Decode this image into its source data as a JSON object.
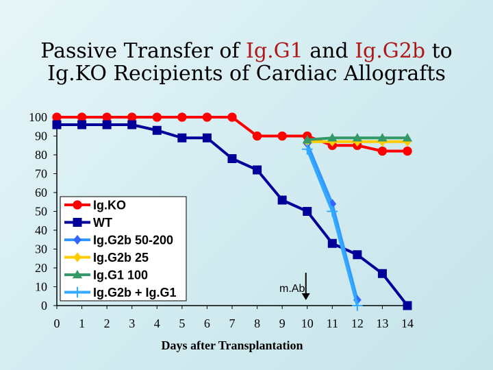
{
  "title": {
    "line1": {
      "p1": "Passive Transfer of ",
      "p2": "Ig.G1",
      "p3": " and ",
      "p4": "Ig.G2b",
      "p5": " to"
    },
    "line2": "Ig.KO Recipients of Cardiac Allografts"
  },
  "colors": {
    "highlight": "#b01818"
  },
  "chart_data": {
    "type": "line",
    "title": "Passive Transfer of Ig.G1 and Ig.G2b to Ig.KO Recipients of Cardiac Allografts",
    "xlabel": "Days after Transplantation",
    "ylabel": "",
    "xlim": [
      0,
      14
    ],
    "ylim": [
      0,
      100
    ],
    "xticks": [
      "0",
      "1",
      "2",
      "3",
      "4",
      "5",
      "6",
      "7",
      "8",
      "9",
      "10",
      "11",
      "12",
      "13",
      "14"
    ],
    "yticks": [
      "0",
      "10",
      "20",
      "30",
      "40",
      "50",
      "60",
      "70",
      "80",
      "90",
      "100"
    ],
    "grid": false,
    "legend_position": "left",
    "annotation": "m.Ab",
    "annotation_arrow_x": 10,
    "series": [
      {
        "name": "Ig.KO",
        "color": "#ff0000",
        "line_color": "#ff0000",
        "marker": "circle",
        "x": [
          0,
          1,
          2,
          3,
          4,
          5,
          6,
          7,
          8,
          9,
          10,
          11,
          12,
          13,
          14
        ],
        "y": [
          100,
          100,
          100,
          100,
          100,
          100,
          100,
          100,
          90,
          90,
          90,
          85,
          85,
          82,
          82
        ]
      },
      {
        "name": "WT",
        "color": "#000099",
        "line_color": "#000099",
        "marker": "square",
        "x": [
          0,
          1,
          2,
          3,
          4,
          5,
          6,
          7,
          8,
          9,
          10,
          11,
          12,
          13,
          14
        ],
        "y": [
          96,
          96,
          96,
          96,
          93,
          89,
          89,
          78,
          72,
          56,
          50,
          33,
          27,
          17,
          0
        ]
      },
      {
        "name": "Ig.G2b 50-200",
        "color": "#3366ff",
        "line_color": "#3399ff",
        "marker": "diamond",
        "x": [
          10,
          11,
          12
        ],
        "y": [
          86,
          54,
          3
        ]
      },
      {
        "name": "Ig.G2b 25",
        "color": "#ffcc00",
        "line_color": "#ffcc00",
        "marker": "diamond",
        "x": [
          10,
          11,
          12,
          13,
          14
        ],
        "y": [
          87,
          87,
          87,
          87,
          87
        ]
      },
      {
        "name": "Ig.G1 100",
        "color": "#339966",
        "line_color": "#339966",
        "marker": "triangle",
        "x": [
          10,
          11,
          12,
          13,
          14
        ],
        "y": [
          88,
          89,
          89,
          89,
          89
        ]
      },
      {
        "name": "Ig.G2b + Ig.G1",
        "color": "#33aaff",
        "line_color": "#33aaff",
        "marker": "plus",
        "x": [
          10,
          11,
          12
        ],
        "y": [
          83,
          50,
          0
        ]
      }
    ]
  }
}
